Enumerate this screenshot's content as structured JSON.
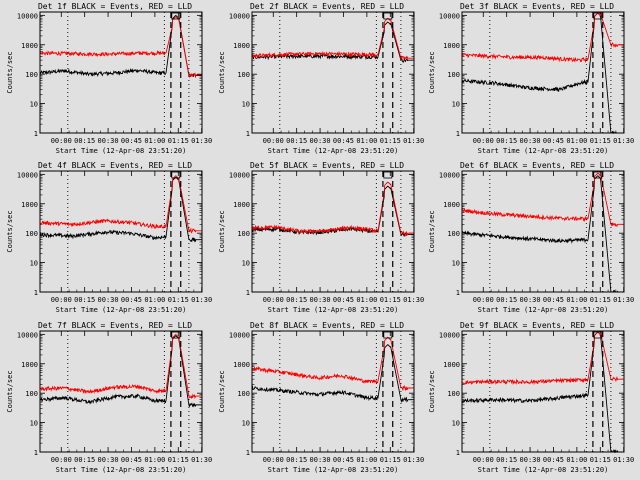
{
  "figure": {
    "background": "#e0e0e0",
    "colors": {
      "events": "#000000",
      "lld": "#ff0000"
    }
  },
  "chart_data": [
    {
      "type": "line",
      "title": "Det 1f BLACK = Events, RED = LLD",
      "ylabel": "Counts/sec",
      "xlabel": "Start Time (12-Apr-08 23:51:20)",
      "xticks": [
        "00:00",
        "00:15",
        "00:30",
        "00:45",
        "01:00",
        "01:15",
        "01:30"
      ],
      "xlim": [
        0,
        99
      ],
      "yscale": "log",
      "ylim": [
        1,
        13000
      ],
      "yticks": [
        "1",
        "10",
        "100",
        "1000",
        "10000"
      ],
      "vlines_dotted": [
        17,
        76,
        91
      ],
      "vlines_dashed": [
        80,
        86
      ],
      "marker_x": 83,
      "peak_x": 83,
      "series": [
        {
          "color": "#000000",
          "base": [
            [
              0,
              110
            ],
            [
              15,
              130
            ],
            [
              30,
              100
            ],
            [
              45,
              110
            ],
            [
              60,
              135
            ],
            [
              72,
              110
            ],
            [
              77,
              110
            ]
          ],
          "peak": 10000,
          "tail": 90
        },
        {
          "color": "#ff0000",
          "base": [
            [
              0,
              520
            ],
            [
              20,
              500
            ],
            [
              40,
              480
            ],
            [
              60,
              520
            ],
            [
              77,
              520
            ]
          ],
          "peak": 9000,
          "tail": 95
        }
      ]
    },
    {
      "type": "line",
      "title": "Det 2f BLACK = Events, RED = LLD",
      "ylabel": "Counts/sec",
      "xlabel": "Start Time (12-Apr-08 23:51:20)",
      "xticks": [
        "00:00",
        "00:15",
        "00:30",
        "00:45",
        "01:00",
        "01:15",
        "01:30"
      ],
      "xlim": [
        0,
        99
      ],
      "yscale": "log",
      "ylim": [
        1,
        13000
      ],
      "yticks": [
        "1",
        "10",
        "100",
        "1000",
        "10000"
      ],
      "vlines_dotted": [
        17,
        76,
        91
      ],
      "vlines_dashed": [
        80,
        86
      ],
      "marker_x": 83,
      "peak_x": 83,
      "series": [
        {
          "color": "#000000",
          "base": [
            [
              0,
              380
            ],
            [
              20,
              400
            ],
            [
              40,
              410
            ],
            [
              60,
              400
            ],
            [
              77,
              390
            ]
          ],
          "peak": 6000,
          "tail": 300
        },
        {
          "color": "#ff0000",
          "base": [
            [
              0,
              420
            ],
            [
              20,
              470
            ],
            [
              40,
              500
            ],
            [
              60,
              480
            ],
            [
              77,
              460
            ]
          ],
          "peak": 8000,
          "tail": 350
        }
      ]
    },
    {
      "type": "line",
      "title": "Det 3f BLACK = Events, RED = LLD",
      "ylabel": "Counts/sec",
      "xlabel": "Start Time (12-Apr-08 23:51:20)",
      "xticks": [
        "00:00",
        "00:15",
        "00:30",
        "00:45",
        "01:00",
        "01:15",
        "01:30"
      ],
      "xlim": [
        0,
        99
      ],
      "yscale": "log",
      "ylim": [
        1,
        13000
      ],
      "yticks": [
        "1",
        "10",
        "100",
        "1000",
        "10000"
      ],
      "vlines_dotted": [
        17,
        76,
        91
      ],
      "vlines_dashed": [
        80,
        86
      ],
      "marker_x": 83,
      "peak_x": 83,
      "series": [
        {
          "color": "#000000",
          "base": [
            [
              0,
              60
            ],
            [
              20,
              50
            ],
            [
              40,
              35
            ],
            [
              60,
              30
            ],
            [
              72,
              50
            ],
            [
              77,
              55
            ]
          ],
          "peak": 12000,
          "tail": 1
        },
        {
          "color": "#ff0000",
          "base": [
            [
              0,
              450
            ],
            [
              30,
              380
            ],
            [
              50,
              370
            ],
            [
              70,
              300
            ],
            [
              77,
              320
            ]
          ],
          "peak": 12000,
          "tail": 1000
        }
      ]
    },
    {
      "type": "line",
      "title": "Det 4f BLACK = Events, RED = LLD",
      "ylabel": "Counts/sec",
      "xlabel": "Start Time (12-Apr-08 23:51:20)",
      "xticks": [
        "00:00",
        "00:15",
        "00:30",
        "00:45",
        "01:00",
        "01:15",
        "01:30"
      ],
      "xlim": [
        0,
        99
      ],
      "yscale": "log",
      "ylim": [
        1,
        13000
      ],
      "yticks": [
        "1",
        "10",
        "100",
        "1000",
        "10000"
      ],
      "vlines_dotted": [
        17,
        76,
        91
      ],
      "vlines_dashed": [
        80,
        86
      ],
      "marker_x": 83,
      "peak_x": 83,
      "series": [
        {
          "color": "#000000",
          "base": [
            [
              0,
              90
            ],
            [
              20,
              80
            ],
            [
              40,
              110
            ],
            [
              55,
              100
            ],
            [
              70,
              70
            ],
            [
              77,
              75
            ]
          ],
          "peak": 8000,
          "tail": 60
        },
        {
          "color": "#ff0000",
          "base": [
            [
              0,
              230
            ],
            [
              20,
              200
            ],
            [
              40,
              260
            ],
            [
              55,
              230
            ],
            [
              70,
              170
            ],
            [
              77,
              170
            ]
          ],
          "peak": 9000,
          "tail": 120
        }
      ]
    },
    {
      "type": "line",
      "title": "Det 5f BLACK = Events, RED = LLD",
      "ylabel": "Counts/sec",
      "xlabel": "Start Time (12-Apr-08 23:51:20)",
      "xticks": [
        "00:00",
        "00:15",
        "00:30",
        "00:45",
        "01:00",
        "01:15",
        "01:30"
      ],
      "xlim": [
        0,
        99
      ],
      "yscale": "log",
      "ylim": [
        1,
        13000
      ],
      "yticks": [
        "1",
        "10",
        "100",
        "1000",
        "10000"
      ],
      "vlines_dotted": [
        17,
        76,
        91
      ],
      "vlines_dashed": [
        80,
        86
      ],
      "marker_x": 83,
      "peak_x": 83,
      "series": [
        {
          "color": "#000000",
          "base": [
            [
              0,
              130
            ],
            [
              15,
              140
            ],
            [
              30,
              105
            ],
            [
              45,
              110
            ],
            [
              60,
              140
            ],
            [
              77,
              110
            ]
          ],
          "peak": 4000,
          "tail": 90
        },
        {
          "color": "#ff0000",
          "base": [
            [
              0,
              150
            ],
            [
              15,
              160
            ],
            [
              30,
              115
            ],
            [
              45,
              120
            ],
            [
              60,
              160
            ],
            [
              77,
              120
            ]
          ],
          "peak": 5500,
          "tail": 100
        }
      ]
    },
    {
      "type": "line",
      "title": "Det 6f BLACK = Events, RED = LLD",
      "ylabel": "Counts/sec",
      "xlabel": "Start Time (12-Apr-08 23:51:20)",
      "xticks": [
        "00:00",
        "00:15",
        "00:30",
        "00:45",
        "01:00",
        "01:15",
        "01:30"
      ],
      "xlim": [
        0,
        99
      ],
      "yscale": "log",
      "ylim": [
        1,
        13000
      ],
      "yticks": [
        "1",
        "10",
        "100",
        "1000",
        "10000"
      ],
      "vlines_dotted": [
        17,
        76,
        91
      ],
      "vlines_dashed": [
        80,
        86
      ],
      "marker_x": 83,
      "peak_x": 83,
      "series": [
        {
          "color": "#000000",
          "base": [
            [
              0,
              100
            ],
            [
              20,
              80
            ],
            [
              40,
              65
            ],
            [
              60,
              55
            ],
            [
              77,
              60
            ]
          ],
          "peak": 9000,
          "tail": 1
        },
        {
          "color": "#ff0000",
          "base": [
            [
              0,
              600
            ],
            [
              20,
              450
            ],
            [
              40,
              380
            ],
            [
              60,
              320
            ],
            [
              77,
              310
            ]
          ],
          "peak": 11000,
          "tail": 200
        }
      ]
    },
    {
      "type": "line",
      "title": "Det 7f BLACK = Events, RED = LLD",
      "ylabel": "Counts/sec",
      "xlabel": "Start Time (12-Apr-08 23:51:20)",
      "xticks": [
        "00:00",
        "00:15",
        "00:30",
        "00:45",
        "01:00",
        "01:15",
        "01:30"
      ],
      "xlim": [
        0,
        99
      ],
      "yscale": "log",
      "ylim": [
        1,
        13000
      ],
      "yticks": [
        "1",
        "10",
        "100",
        "1000",
        "10000"
      ],
      "vlines_dotted": [
        17,
        76,
        91
      ],
      "vlines_dashed": [
        80,
        86
      ],
      "marker_x": 83,
      "peak_x": 83,
      "series": [
        {
          "color": "#000000",
          "base": [
            [
              0,
              60
            ],
            [
              15,
              70
            ],
            [
              30,
              50
            ],
            [
              45,
              75
            ],
            [
              60,
              80
            ],
            [
              70,
              55
            ],
            [
              77,
              55
            ]
          ],
          "peak": 9000,
          "tail": 40
        },
        {
          "color": "#ff0000",
          "base": [
            [
              0,
              140
            ],
            [
              15,
              150
            ],
            [
              30,
              110
            ],
            [
              45,
              160
            ],
            [
              60,
              170
            ],
            [
              70,
              120
            ],
            [
              77,
              120
            ]
          ],
          "peak": 10000,
          "tail": 80
        }
      ]
    },
    {
      "type": "line",
      "title": "Det 8f BLACK = Events, RED = LLD",
      "ylabel": "Counts/sec",
      "xlabel": "Start Time (12-Apr-08 23:51:20)",
      "xticks": [
        "00:00",
        "00:15",
        "00:30",
        "00:45",
        "01:00",
        "01:15",
        "01:30"
      ],
      "xlim": [
        0,
        99
      ],
      "yscale": "log",
      "ylim": [
        1,
        13000
      ],
      "yticks": [
        "1",
        "10",
        "100",
        "1000",
        "10000"
      ],
      "vlines_dotted": [
        17,
        76,
        91
      ],
      "vlines_dashed": [
        80,
        86
      ],
      "marker_x": 83,
      "peak_x": 83,
      "series": [
        {
          "color": "#000000",
          "base": [
            [
              0,
              150
            ],
            [
              20,
              120
            ],
            [
              40,
              90
            ],
            [
              55,
              110
            ],
            [
              70,
              70
            ],
            [
              77,
              70
            ]
          ],
          "peak": 4500,
          "tail": 60
        },
        {
          "color": "#ff0000",
          "base": [
            [
              0,
              700
            ],
            [
              20,
              500
            ],
            [
              40,
              330
            ],
            [
              55,
              400
            ],
            [
              70,
              250
            ],
            [
              77,
              260
            ]
          ],
          "peak": 8000,
          "tail": 150
        }
      ]
    },
    {
      "type": "line",
      "title": "Det 9f BLACK = Events, RED = LLD",
      "ylabel": "Counts/sec",
      "xlabel": "Start Time (12-Apr-08 23:51:20)",
      "xticks": [
        "00:00",
        "00:15",
        "00:30",
        "00:45",
        "01:00",
        "01:15",
        "01:30"
      ],
      "xlim": [
        0,
        99
      ],
      "yscale": "log",
      "ylim": [
        1,
        13000
      ],
      "yticks": [
        "1",
        "10",
        "100",
        "1000",
        "10000"
      ],
      "vlines_dotted": [
        17,
        76,
        91
      ],
      "vlines_dashed": [
        80,
        86
      ],
      "marker_x": 83,
      "peak_x": 83,
      "series": [
        {
          "color": "#000000",
          "base": [
            [
              0,
              55
            ],
            [
              20,
              60
            ],
            [
              40,
              55
            ],
            [
              55,
              65
            ],
            [
              70,
              80
            ],
            [
              77,
              85
            ]
          ],
          "peak": 12000,
          "tail": 1
        },
        {
          "color": "#ff0000",
          "base": [
            [
              0,
              230
            ],
            [
              20,
              250
            ],
            [
              40,
              240
            ],
            [
              55,
              260
            ],
            [
              70,
              280
            ],
            [
              77,
              290
            ]
          ],
          "peak": 12000,
          "tail": 300
        }
      ]
    }
  ]
}
